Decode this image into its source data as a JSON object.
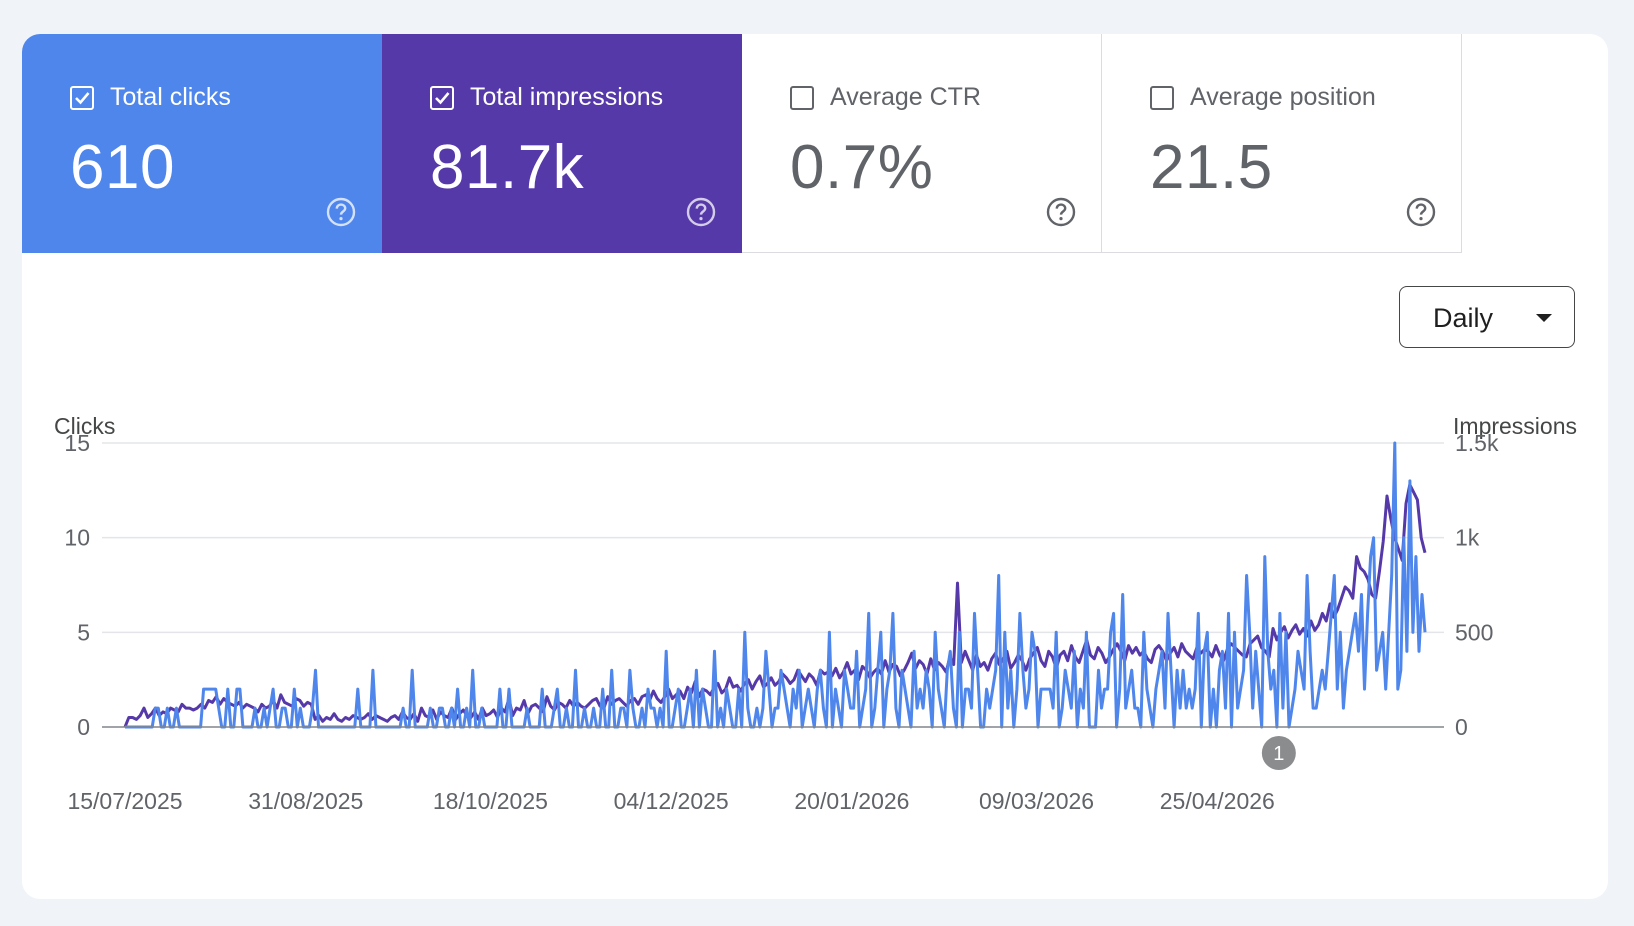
{
  "metrics": {
    "total_clicks": {
      "label": "Total clicks",
      "value": "610",
      "checked": true,
      "color": "#4f86ec"
    },
    "total_impressions": {
      "label": "Total impressions",
      "value": "81.7k",
      "checked": true,
      "color": "#5639a9"
    },
    "average_ctr": {
      "label": "Average CTR",
      "value": "0.7%",
      "checked": false
    },
    "average_position": {
      "label": "Average position",
      "value": "21.5",
      "checked": false
    }
  },
  "granularity": {
    "selected": "Daily"
  },
  "annotation": {
    "label": "1",
    "date": "2026-05-11"
  },
  "chart_data": {
    "type": "line",
    "x_start": "2025-07-15",
    "x_end": "2026-06-18",
    "x_ticks": [
      "15/07/2025",
      "31/08/2025",
      "18/10/2025",
      "04/12/2025",
      "20/01/2026",
      "09/03/2026",
      "25/04/2026"
    ],
    "left_axis": {
      "title": "Clicks",
      "ticks": [
        "0",
        "5",
        "10",
        "15"
      ],
      "range": [
        0,
        15
      ]
    },
    "right_axis": {
      "title": "Impressions",
      "ticks": [
        "0",
        "500",
        "1k",
        "1.5k"
      ],
      "range": [
        0,
        1500
      ]
    },
    "grid": true,
    "series": [
      {
        "name": "Total impressions",
        "axis": "right",
        "color": "#5639a9",
        "values": [
          0,
          50,
          50,
          40,
          60,
          100,
          50,
          70,
          100,
          60,
          80,
          70,
          100,
          90,
          80,
          120,
          100,
          100,
          90,
          100,
          120,
          100,
          140,
          130,
          160,
          120,
          150,
          130,
          120,
          110,
          130,
          100,
          120,
          110,
          100,
          80,
          120,
          100,
          110,
          140,
          100,
          170,
          130,
          120,
          110,
          150,
          140,
          110,
          130,
          120,
          40,
          60,
          30,
          50,
          40,
          70,
          40,
          30,
          50,
          40,
          60,
          50,
          40,
          50,
          70,
          40,
          60,
          50,
          40,
          30,
          50,
          60,
          40,
          80,
          50,
          40,
          70,
          30,
          100,
          60,
          50,
          90,
          40,
          80,
          60,
          50,
          100,
          40,
          70,
          90,
          60,
          50,
          80,
          40,
          100,
          60,
          70,
          90,
          50,
          100,
          80,
          150,
          60,
          100,
          90,
          140,
          70,
          110,
          120,
          100,
          80,
          160,
          110,
          90,
          130,
          120,
          100,
          140,
          110,
          130,
          110,
          100,
          120,
          140,
          150,
          110,
          100,
          160,
          120,
          140,
          150,
          130,
          110,
          140,
          150,
          120,
          160,
          170,
          140,
          190,
          150,
          130,
          160,
          200,
          150,
          170,
          190,
          150,
          210,
          180,
          240,
          160,
          200,
          190,
          170,
          210,
          230,
          180,
          200,
          260,
          210,
          220,
          190,
          230,
          250,
          200,
          240,
          270,
          210,
          230,
          260,
          220,
          240,
          280,
          260,
          230,
          250,
          300,
          270,
          240,
          280,
          260,
          220,
          300,
          280,
          290,
          270,
          310,
          260,
          290,
          340,
          280,
          300,
          250,
          320,
          300,
          260,
          290,
          310,
          280,
          350,
          290,
          330,
          320,
          270,
          300,
          340,
          390,
          310,
          350,
          330,
          280,
          360,
          300,
          340,
          320,
          290,
          370,
          330,
          760,
          340,
          400,
          350,
          300,
          380,
          320,
          340,
          300,
          360,
          390,
          330,
          360,
          400,
          310,
          340,
          380,
          350,
          300,
          360,
          390,
          420,
          350,
          320,
          400,
          370,
          310,
          380,
          400,
          350,
          430,
          370,
          340,
          400,
          460,
          380,
          360,
          420,
          390,
          340,
          370,
          410,
          440,
          400,
          350,
          430,
          390,
          420,
          380,
          400,
          360,
          340,
          410,
          430,
          400,
          350,
          390,
          420,
          370,
          440,
          400,
          380,
          360,
          420,
          390,
          410,
          400,
          370,
          430,
          380,
          350,
          410,
          440,
          420,
          400,
          380,
          370,
          440,
          460,
          480,
          420,
          400,
          370,
          520,
          460,
          500,
          530,
          470,
          510,
          540,
          490,
          520,
          480,
          560,
          510,
          540,
          600,
          560,
          650,
          580,
          620,
          680,
          740,
          720,
          680,
          900,
          840,
          820,
          780,
          700,
          680,
          820,
          980,
          1220,
          1100,
          1000,
          940,
          880,
          1180,
          1280,
          1240,
          1200,
          1000,
          920
        ],
        "note": "daily values approximated"
      },
      {
        "name": "Total clicks",
        "axis": "left",
        "color": "#4f86ec",
        "values": [
          0,
          0,
          0,
          0,
          0,
          0,
          0,
          0,
          0,
          0,
          1,
          1,
          0,
          0,
          1,
          0,
          0,
          1,
          0,
          0,
          0,
          0,
          0,
          0,
          0,
          0,
          2,
          2,
          2,
          2,
          2,
          1,
          0,
          0,
          2,
          0,
          0,
          2,
          2,
          0,
          0,
          0,
          0,
          1,
          0,
          0,
          1,
          0,
          1,
          2,
          0,
          0,
          1,
          1,
          0,
          0,
          2,
          0,
          1,
          0,
          0,
          0,
          1,
          3,
          0,
          0,
          0,
          0,
          0,
          0,
          0,
          0,
          0,
          0,
          0,
          0,
          0,
          2,
          0,
          0,
          0,
          0,
          3,
          0,
          0,
          0,
          0,
          0,
          0,
          0,
          0,
          0,
          1,
          0,
          0,
          3,
          0,
          0,
          0,
          0,
          0,
          1,
          0,
          0,
          1,
          1,
          0,
          0,
          1,
          0,
          2,
          0,
          0,
          1,
          0,
          3,
          0,
          0,
          1,
          0,
          0,
          0,
          0,
          0,
          2,
          0,
          0,
          2,
          0,
          0,
          0,
          0,
          0,
          1,
          0,
          0,
          0,
          0,
          2,
          0,
          0,
          0,
          1,
          2,
          0,
          0,
          1,
          0,
          0,
          3,
          0,
          0,
          1,
          0,
          0,
          1,
          0,
          0,
          2,
          0,
          0,
          3,
          0,
          0,
          1,
          1,
          0,
          3,
          1,
          0,
          0,
          1,
          0,
          2,
          1,
          1,
          0,
          1,
          0,
          4,
          0,
          0,
          1,
          2,
          0,
          0,
          1,
          2,
          0,
          3,
          0,
          2,
          1,
          0,
          0,
          4,
          0,
          1,
          0,
          2,
          1,
          0,
          0,
          2,
          0,
          5,
          1,
          0,
          0,
          1,
          0,
          1,
          4,
          2,
          0,
          1,
          1,
          3,
          2,
          1,
          0,
          2,
          1,
          3,
          0,
          1,
          2,
          1,
          0,
          2,
          3,
          1,
          0,
          5,
          0,
          2,
          1,
          0,
          3,
          2,
          1,
          1,
          4,
          0,
          1,
          2,
          6,
          0,
          1,
          3,
          5,
          0,
          2,
          3,
          6,
          1,
          0,
          3,
          2,
          1,
          0,
          4,
          1,
          2,
          1,
          3,
          2,
          0,
          5,
          2,
          1,
          0,
          3,
          4,
          1,
          0,
          5,
          0,
          2,
          2,
          1,
          6,
          3,
          0,
          0,
          2,
          1,
          2,
          3,
          8,
          0,
          5,
          1,
          3,
          0,
          2,
          6,
          3,
          1,
          2,
          5,
          4,
          0,
          2,
          2,
          2,
          2,
          1,
          5,
          0,
          1,
          3,
          2,
          1,
          4,
          0,
          2,
          1,
          5,
          0,
          0,
          0,
          3,
          1,
          2,
          2,
          5,
          6,
          0,
          2,
          7,
          1,
          2,
          3,
          1,
          1,
          0,
          5,
          2,
          1,
          0,
          2,
          3,
          4,
          1,
          6,
          3,
          0,
          3,
          1,
          3,
          1,
          2,
          1,
          2,
          6,
          0,
          4,
          5,
          0,
          2,
          0,
          3,
          4,
          1,
          6,
          0,
          5,
          1,
          2,
          3,
          8,
          5,
          1,
          4,
          2,
          0,
          9,
          4,
          2,
          3,
          0,
          6,
          1,
          5,
          0,
          1,
          2,
          4,
          3,
          2,
          8,
          4,
          1,
          1,
          2,
          3,
          2,
          4,
          6,
          8,
          2,
          5,
          1,
          3,
          4,
          5,
          6,
          4,
          7,
          2,
          6,
          9,
          10,
          3,
          4,
          5,
          2,
          5,
          8,
          15,
          2,
          3,
          10,
          4,
          13,
          5,
          9,
          4,
          7,
          5
        ]
      }
    ]
  }
}
